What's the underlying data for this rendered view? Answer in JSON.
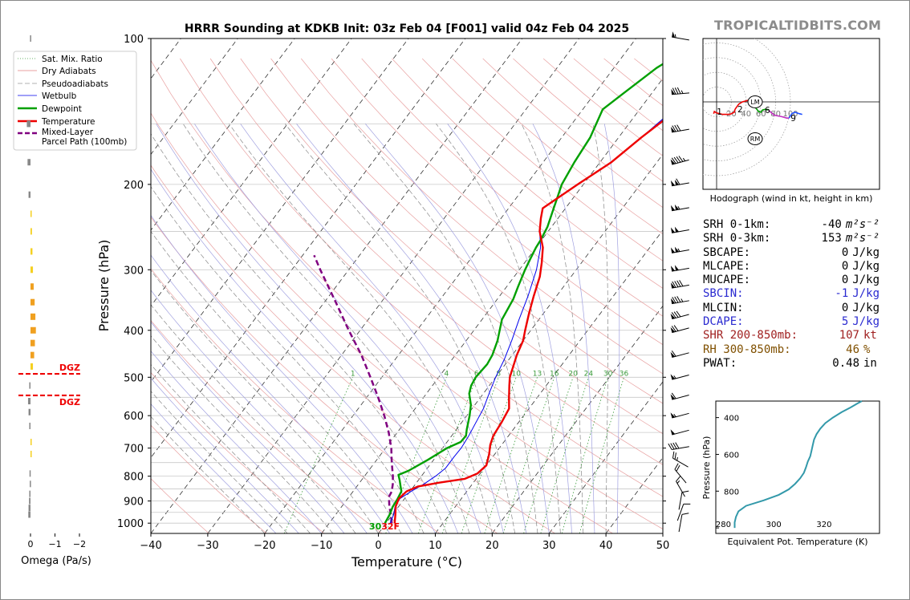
{
  "watermark": "TROPICALTIDBITS.COM",
  "chart_data": {
    "type": "skewt-sounding",
    "title": "HRRR Sounding at KDKB Init: 03z Feb 04 [F001] valid 04z Feb 04 2025",
    "xlabel": "Temperature (°C)",
    "ylabel": "Pressure (hPa)",
    "xlim": [
      -40,
      50
    ],
    "ylim": [
      1050,
      100
    ],
    "x_ticks": [
      "−40",
      "−30",
      "−20",
      "−10",
      "0",
      "10",
      "20",
      "30",
      "40",
      "50"
    ],
    "y_ticks": [
      "100",
      "200",
      "300",
      "400",
      "500",
      "600",
      "700",
      "800",
      "900",
      "1000"
    ],
    "legend": [
      {
        "label": "Sat. Mix. Ratio",
        "color": "#3a9a3a",
        "style": "dotted"
      },
      {
        "label": "Dry Adiabats",
        "color": "#e08080",
        "style": "solid"
      },
      {
        "label": "Pseudoadiabats",
        "color": "#999999",
        "style": "dashed"
      },
      {
        "label": "Wetbulb",
        "color": "#0000ee",
        "style": "solid"
      },
      {
        "label": "Dewpoint",
        "color": "#00a000",
        "style": "bold"
      },
      {
        "label": "Temperature",
        "color": "#ee0000",
        "style": "bold"
      },
      {
        "label": "Mixed-Layer\nParcel Path (100mb)",
        "color": "#800080",
        "style": "bold-dashed"
      }
    ],
    "temperature": [
      [
        1000,
        1.5
      ],
      [
        960,
        0.5
      ],
      [
        925,
        -0.5
      ],
      [
        890,
        -1.0
      ],
      [
        860,
        -0.6
      ],
      [
        840,
        0.8
      ],
      [
        825,
        4
      ],
      [
        810,
        8
      ],
      [
        790,
        9.5
      ],
      [
        760,
        10
      ],
      [
        720,
        9
      ],
      [
        690,
        8
      ],
      [
        660,
        7.3
      ],
      [
        620,
        7
      ],
      [
        580,
        6.5
      ],
      [
        550,
        5
      ],
      [
        520,
        3.5
      ],
      [
        500,
        2.5
      ],
      [
        470,
        1.5
      ],
      [
        450,
        0.8
      ],
      [
        420,
        0
      ],
      [
        400,
        -1
      ],
      [
        370,
        -2.5
      ],
      [
        340,
        -4
      ],
      [
        310,
        -5.5
      ],
      [
        290,
        -7
      ],
      [
        270,
        -8.8
      ],
      [
        250,
        -11.5
      ],
      [
        235,
        -13
      ],
      [
        224,
        -14
      ],
      [
        200,
        -11
      ],
      [
        180,
        -8
      ],
      [
        160,
        -6
      ],
      [
        145,
        -4
      ],
      [
        130,
        -1.5
      ],
      [
        115,
        0.2
      ],
      [
        100,
        3
      ]
    ],
    "dewpoint": [
      [
        1000,
        -0.2
      ],
      [
        960,
        -0.5
      ],
      [
        925,
        -1
      ],
      [
        890,
        -1.2
      ],
      [
        860,
        -1.5
      ],
      [
        840,
        -2.3
      ],
      [
        815,
        -3.3
      ],
      [
        795,
        -4.2
      ],
      [
        780,
        -3
      ],
      [
        740,
        -1
      ],
      [
        700,
        0.8
      ],
      [
        680,
        2.4
      ],
      [
        660,
        2.5
      ],
      [
        640,
        1.8
      ],
      [
        600,
        0.5
      ],
      [
        570,
        -0.7
      ],
      [
        540,
        -2.5
      ],
      [
        520,
        -3.2
      ],
      [
        500,
        -3.5
      ],
      [
        470,
        -3.2
      ],
      [
        450,
        -3.5
      ],
      [
        420,
        -4.5
      ],
      [
        380,
        -6.5
      ],
      [
        345,
        -7.2
      ],
      [
        325,
        -8
      ],
      [
        300,
        -9
      ],
      [
        285,
        -9.5
      ],
      [
        270,
        -10
      ],
      [
        260,
        -10.2
      ],
      [
        245,
        -10.7
      ],
      [
        225,
        -12
      ],
      [
        200,
        -13.8
      ],
      [
        180,
        -14.5
      ],
      [
        160,
        -15
      ],
      [
        140,
        -16.5
      ],
      [
        130,
        -15
      ],
      [
        115,
        -12.5
      ],
      [
        100,
        -8
      ]
    ],
    "wetbulb": [
      [
        1000,
        0.7
      ],
      [
        960,
        0.2
      ],
      [
        925,
        -0.6
      ],
      [
        890,
        -0.8
      ],
      [
        860,
        0.2
      ],
      [
        830,
        1.5
      ],
      [
        800,
        2.5
      ],
      [
        770,
        3.2
      ],
      [
        730,
        3.2
      ],
      [
        700,
        3.3
      ],
      [
        660,
        3
      ],
      [
        620,
        2.5
      ],
      [
        580,
        2
      ],
      [
        540,
        1
      ],
      [
        500,
        0
      ],
      [
        460,
        -0.8
      ],
      [
        420,
        -2
      ],
      [
        380,
        -3.5
      ],
      [
        340,
        -5
      ],
      [
        300,
        -7
      ],
      [
        270,
        -9.2
      ],
      [
        250,
        -11.5
      ],
      [
        235,
        -13
      ],
      [
        224,
        -14
      ],
      [
        200,
        -11
      ],
      [
        180,
        -8
      ],
      [
        160,
        -6
      ],
      [
        145,
        -4.5
      ],
      [
        130,
        -2.2
      ],
      [
        115,
        -0.5
      ],
      [
        100,
        1.5
      ]
    ],
    "parcel_path": [
      [
        1000,
        1
      ],
      [
        960,
        -0.3
      ],
      [
        925,
        -1.6
      ],
      [
        900,
        -2.4
      ],
      [
        880,
        -3
      ],
      [
        860,
        -3.2
      ],
      [
        830,
        -4
      ],
      [
        800,
        -5
      ],
      [
        750,
        -7
      ],
      [
        700,
        -9
      ],
      [
        650,
        -11.5
      ],
      [
        600,
        -14.5
      ],
      [
        550,
        -18
      ],
      [
        500,
        -22
      ],
      [
        450,
        -26.5
      ],
      [
        400,
        -32
      ],
      [
        350,
        -38
      ],
      [
        300,
        -45
      ],
      [
        280,
        -48
      ]
    ],
    "sfc_label": "32F",
    "sfc_label_prefix": "30",
    "mixing_ratio_labels": [
      "1",
      "4",
      "6",
      "8",
      "10",
      "13",
      "16",
      "20",
      "24",
      "30",
      "36"
    ],
    "dgz_labels": [
      "DGZ",
      "DGZ"
    ],
    "omega": {
      "xlabel": "Omega (Pa/s)",
      "ticks": [
        "0",
        "−1",
        "−2"
      ],
      "bars": [
        [
          100,
          0.02
        ],
        [
          150,
          0.15
        ],
        [
          180,
          0.12
        ],
        [
          210,
          0.08
        ],
        [
          230,
          -0.04
        ],
        [
          250,
          -0.06
        ],
        [
          275,
          -0.08
        ],
        [
          300,
          -0.1
        ],
        [
          325,
          -0.13
        ],
        [
          350,
          -0.17
        ],
        [
          375,
          -0.2
        ],
        [
          400,
          -0.22
        ],
        [
          425,
          -0.18
        ],
        [
          450,
          -0.15
        ],
        [
          475,
          -0.1
        ],
        [
          520,
          0.05
        ],
        [
          560,
          0.1
        ],
        [
          590,
          0.08
        ],
        [
          630,
          0.05
        ],
        [
          680,
          -0.03
        ],
        [
          720,
          -0.03
        ],
        [
          790,
          0.04
        ],
        [
          830,
          0.03
        ],
        [
          870,
          0.05
        ],
        [
          900,
          0.06
        ],
        [
          930,
          0.08
        ],
        [
          960,
          0.09
        ]
      ]
    },
    "hodograph": {
      "caption": "Hodograph (wind in kt, height in km)",
      "ring_labels": [
        "20",
        "40",
        "60",
        "80",
        "100"
      ],
      "point_labels": [
        "1",
        "2",
        "3",
        "6",
        "9"
      ],
      "LM": "LM",
      "RM": "RM",
      "segments": [
        {
          "color": "#ee0000",
          "points": [
            [
              -4,
              -16
            ],
            [
              -3,
              -13
            ],
            [
              0,
              -15
            ],
            [
              8,
              -17
            ],
            [
              18,
              -17
            ],
            [
              24,
              -14
            ],
            [
              25,
              -10
            ]
          ]
        },
        {
          "color": "#ee0000",
          "points": [
            [
              25,
              -10
            ],
            [
              30,
              -3
            ],
            [
              35,
              0
            ],
            [
              42,
              2
            ],
            [
              44,
              1
            ]
          ]
        },
        {
          "color": "#00a000",
          "points": [
            [
              44,
              1
            ],
            [
              48,
              -1
            ],
            [
              52,
              -7
            ],
            [
              57,
              -13
            ],
            [
              60,
              -14
            ],
            [
              62,
              -11
            ]
          ]
        },
        {
          "color": "#00a000",
          "points": [
            [
              62,
              -11
            ],
            [
              66,
              -10
            ],
            [
              70,
              -11
            ]
          ]
        },
        {
          "color": "#c030c0",
          "points": [
            [
              70,
              -11
            ],
            [
              78,
              -18
            ],
            [
              88,
              -20
            ],
            [
              95,
              -22
            ],
            [
              98,
              -22
            ]
          ]
        },
        {
          "color": "#2050ff",
          "points": [
            [
              98,
              -22
            ],
            [
              102,
              -16
            ],
            [
              106,
              -14
            ],
            [
              112,
              -16
            ],
            [
              116,
              -17
            ]
          ]
        }
      ]
    },
    "theta_e": {
      "ylabel": "Pressure (hPa)",
      "xlabel": "Equivalent Pot. Temperature (K)",
      "y_ticks": [
        "400",
        "600",
        "800"
      ],
      "x_ticks": [
        "280",
        "300",
        "320"
      ],
      "xlim": [
        277,
        342
      ],
      "ylim": [
        1030,
        310
      ],
      "points": [
        [
          1000,
          284.5
        ],
        [
          970,
          284.5
        ],
        [
          940,
          285
        ],
        [
          910,
          286
        ],
        [
          880,
          289
        ],
        [
          850,
          296
        ],
        [
          820,
          302
        ],
        [
          790,
          306
        ],
        [
          760,
          308.5
        ],
        [
          730,
          310.5
        ],
        [
          700,
          312
        ],
        [
          670,
          312.8
        ],
        [
          640,
          313.5
        ],
        [
          610,
          314.5
        ],
        [
          580,
          315
        ],
        [
          550,
          315.5
        ],
        [
          520,
          316
        ],
        [
          490,
          317
        ],
        [
          460,
          318.5
        ],
        [
          430,
          320.5
        ],
        [
          400,
          323.5
        ],
        [
          370,
          327
        ],
        [
          345,
          330.5
        ],
        [
          325,
          333
        ],
        [
          310,
          335
        ]
      ]
    }
  },
  "indices": [
    {
      "label": "SRH 0-1km:",
      "value": "-40",
      "unit": "m²s⁻²",
      "color": "#000000"
    },
    {
      "label": "SRH 0-3km:",
      "value": "153",
      "unit": "m²s⁻²",
      "color": "#000000"
    },
    {
      "label": "SBCAPE:",
      "value": "0",
      "unit": "J/kg",
      "color": "#000000"
    },
    {
      "label": "MLCAPE:",
      "value": "0",
      "unit": "J/kg",
      "color": "#000000"
    },
    {
      "label": "MUCAPE:",
      "value": "0",
      "unit": "J/kg",
      "color": "#000000"
    },
    {
      "label": "SBCIN:",
      "value": "-1",
      "unit": "J/kg",
      "color": "#2a2ad0"
    },
    {
      "label": "MLCIN:",
      "value": "0",
      "unit": "J/kg",
      "color": "#000000"
    },
    {
      "label": "DCAPE:",
      "value": "5",
      "unit": "J/kg",
      "color": "#2a2ad0"
    },
    {
      "label": "SHR 200-850mb:",
      "value": "107",
      "unit": "kt",
      "color": "#a02020"
    },
    {
      "label": "RH 300-850mb:",
      "value": "46",
      "unit": "%",
      "color": "#805000"
    },
    {
      "label": "PWAT:",
      "value": "0.48",
      "unit": "in",
      "color": "#000000"
    }
  ],
  "wind_barbs": [
    {
      "p": 100,
      "spd": 55,
      "dir": 280
    },
    {
      "p": 130,
      "spd": 85,
      "dir": 265
    },
    {
      "p": 155,
      "spd": 80,
      "dir": 260
    },
    {
      "p": 180,
      "spd": 95,
      "dir": 255
    },
    {
      "p": 200,
      "spd": 110,
      "dir": 260
    },
    {
      "p": 225,
      "spd": 105,
      "dir": 260
    },
    {
      "p": 250,
      "spd": 100,
      "dir": 260
    },
    {
      "p": 275,
      "spd": 105,
      "dir": 260
    },
    {
      "p": 300,
      "spd": 100,
      "dir": 260
    },
    {
      "p": 325,
      "spd": 90,
      "dir": 260
    },
    {
      "p": 350,
      "spd": 85,
      "dir": 260
    },
    {
      "p": 375,
      "spd": 80,
      "dir": 255
    },
    {
      "p": 400,
      "spd": 70,
      "dir": 255
    },
    {
      "p": 450,
      "spd": 60,
      "dir": 255
    },
    {
      "p": 500,
      "spd": 55,
      "dir": 255
    },
    {
      "p": 550,
      "spd": 60,
      "dir": 255
    },
    {
      "p": 600,
      "spd": 55,
      "dir": 255
    },
    {
      "p": 650,
      "spd": 50,
      "dir": 255
    },
    {
      "p": 700,
      "spd": 40,
      "dir": 260
    },
    {
      "p": 750,
      "spd": 25,
      "dir": 300
    },
    {
      "p": 800,
      "spd": 20,
      "dir": 320
    },
    {
      "p": 850,
      "spd": 15,
      "dir": 330
    },
    {
      "p": 900,
      "spd": 12,
      "dir": 10
    },
    {
      "p": 950,
      "spd": 12,
      "dir": 20
    },
    {
      "p": 1000,
      "spd": 10,
      "dir": 10
    }
  ]
}
